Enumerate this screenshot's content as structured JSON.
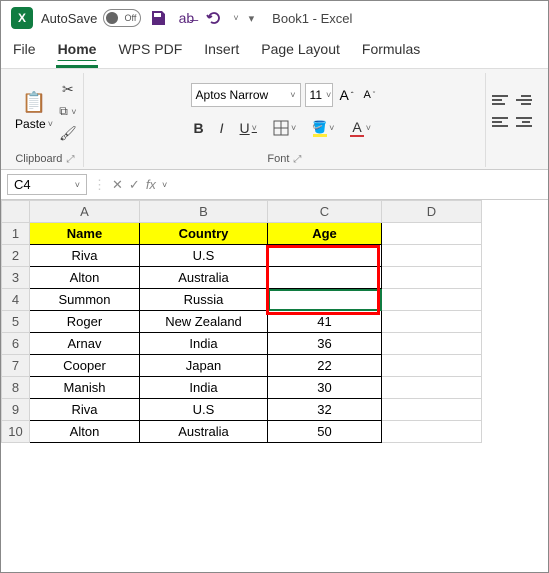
{
  "titlebar": {
    "autosave_label": "AutoSave",
    "autosave_state": "Off",
    "doc_title": "Book1  -  Excel"
  },
  "tabs": [
    "File",
    "Home",
    "WPS PDF",
    "Insert",
    "Page Layout",
    "Formulas"
  ],
  "active_tab": "Home",
  "ribbon": {
    "clipboard": {
      "paste": "Paste",
      "label": "Clipboard"
    },
    "font": {
      "name": "Aptos Narrow",
      "size": "11",
      "bold": "B",
      "italic": "I",
      "underline": "U",
      "label": "Font"
    }
  },
  "formula_bar": {
    "name_box": "C4",
    "value": ""
  },
  "columns": [
    "A",
    "B",
    "C",
    "D"
  ],
  "col_widths": {
    "A": 110,
    "B": 128,
    "C": 114,
    "D": 100
  },
  "header_row": 1,
  "headers": {
    "A": "Name",
    "B": "Country",
    "C": "Age"
  },
  "header_bg": "#ffff00",
  "rows": [
    {
      "n": 1,
      "A": "Name",
      "B": "Country",
      "C": "Age",
      "hdr": true
    },
    {
      "n": 2,
      "A": "Riva",
      "B": "U.S",
      "C": ""
    },
    {
      "n": 3,
      "A": "Alton",
      "B": "Australia",
      "C": ""
    },
    {
      "n": 4,
      "A": "Summon",
      "B": "Russia",
      "C": ""
    },
    {
      "n": 5,
      "A": "Roger",
      "B": "New Zealand",
      "C": "41"
    },
    {
      "n": 6,
      "A": "Arnav",
      "B": "India",
      "C": "36"
    },
    {
      "n": 7,
      "A": "Cooper",
      "B": "Japan",
      "C": "22"
    },
    {
      "n": 8,
      "A": "Manish",
      "B": "India",
      "C": "30"
    },
    {
      "n": 9,
      "A": "Riva",
      "B": "U.S",
      "C": "32"
    },
    {
      "n": 10,
      "A": "Alton",
      "B": "Australia",
      "C": "50"
    }
  ],
  "data_range_rows": [
    1,
    10
  ],
  "data_range_cols": [
    "A",
    "B",
    "C"
  ],
  "selection": {
    "cell": "C4"
  },
  "highlight_box": {
    "col": "C",
    "row_start": 2,
    "row_end": 4,
    "color": "#ff0000"
  },
  "colors": {
    "accent": "#107c41",
    "header_fill": "#ffff00",
    "grid": "#d4d4d4",
    "data_border": "#000000"
  }
}
